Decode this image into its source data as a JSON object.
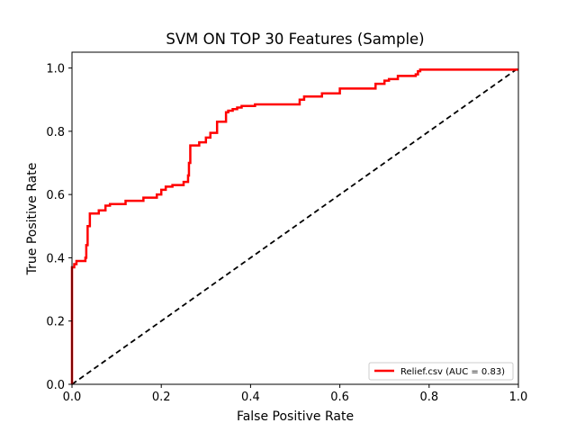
{
  "chart_data": {
    "type": "line",
    "title": "SVM ON TOP 30 Features (Sample)",
    "xlabel": "False Positive Rate",
    "ylabel": "True Positive Rate",
    "xlim": [
      0,
      1
    ],
    "ylim": [
      0,
      1.05
    ],
    "xticks": [
      0.0,
      0.2,
      0.4,
      0.6,
      0.8,
      1.0
    ],
    "yticks": [
      0.0,
      0.2,
      0.4,
      0.6,
      0.8,
      1.0
    ],
    "xtick_labels": [
      "0.0",
      "0.2",
      "0.4",
      "0.6",
      "0.8",
      "1.0"
    ],
    "ytick_labels": [
      "0.0",
      "0.2",
      "0.4",
      "0.6",
      "0.8",
      "1.0"
    ],
    "grid": false,
    "legend_position": "lower-right",
    "series": [
      {
        "name": "Relief.csv (AUC = 0.83)",
        "color": "#ff0000",
        "style": "solid",
        "x": [
          0,
          0,
          0.005,
          0.005,
          0.01,
          0.01,
          0.02,
          0.02,
          0.03,
          0.03,
          0.032,
          0.032,
          0.035,
          0.035,
          0.04,
          0.04,
          0.06,
          0.06,
          0.075,
          0.075,
          0.085,
          0.085,
          0.12,
          0.12,
          0.16,
          0.16,
          0.19,
          0.19,
          0.2,
          0.2,
          0.21,
          0.21,
          0.225,
          0.225,
          0.25,
          0.25,
          0.26,
          0.26,
          0.262,
          0.262,
          0.265,
          0.265,
          0.27,
          0.27,
          0.285,
          0.285,
          0.3,
          0.3,
          0.31,
          0.31,
          0.325,
          0.325,
          0.345,
          0.345,
          0.35,
          0.35,
          0.36,
          0.36,
          0.37,
          0.37,
          0.38,
          0.38,
          0.41,
          0.41,
          0.51,
          0.51,
          0.52,
          0.52,
          0.56,
          0.56,
          0.6,
          0.6,
          0.62,
          0.62,
          0.68,
          0.68,
          0.7,
          0.7,
          0.71,
          0.71,
          0.73,
          0.73,
          0.77,
          0.77,
          0.775,
          0.775,
          0.78,
          0.78,
          1.0
        ],
        "y": [
          0,
          0.37,
          0.37,
          0.38,
          0.38,
          0.39,
          0.39,
          0.39,
          0.39,
          0.4,
          0.4,
          0.44,
          0.44,
          0.5,
          0.5,
          0.54,
          0.54,
          0.55,
          0.55,
          0.565,
          0.565,
          0.57,
          0.57,
          0.58,
          0.58,
          0.59,
          0.59,
          0.6,
          0.6,
          0.615,
          0.615,
          0.625,
          0.625,
          0.63,
          0.63,
          0.64,
          0.64,
          0.66,
          0.66,
          0.7,
          0.7,
          0.755,
          0.755,
          0.755,
          0.755,
          0.765,
          0.765,
          0.78,
          0.78,
          0.795,
          0.795,
          0.83,
          0.83,
          0.86,
          0.86,
          0.865,
          0.865,
          0.87,
          0.87,
          0.875,
          0.875,
          0.88,
          0.88,
          0.885,
          0.885,
          0.9,
          0.9,
          0.91,
          0.91,
          0.92,
          0.92,
          0.935,
          0.935,
          0.935,
          0.935,
          0.95,
          0.95,
          0.96,
          0.96,
          0.965,
          0.965,
          0.975,
          0.975,
          0.98,
          0.98,
          0.99,
          0.99,
          0.995,
          0.995
        ]
      },
      {
        "name": "",
        "color": "#000000",
        "style": "dashed",
        "x": [
          0,
          1
        ],
        "y": [
          0,
          1
        ]
      }
    ]
  }
}
